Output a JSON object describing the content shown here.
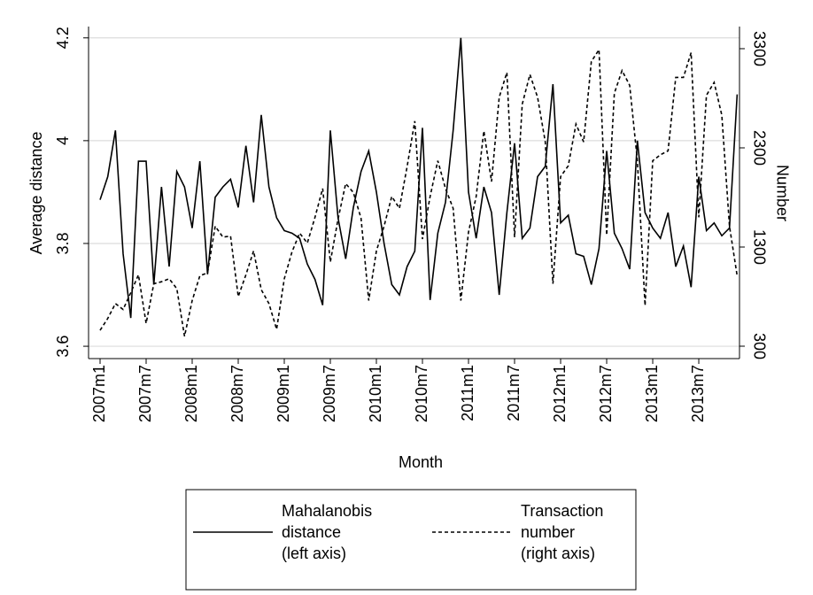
{
  "chart_data": {
    "type": "line",
    "x_label": "Month",
    "y_label": "Average distance",
    "y2_label": "Number",
    "categories": [
      "2007m1",
      null,
      null,
      null,
      null,
      null,
      "2007m7",
      null,
      null,
      null,
      null,
      null,
      "2008m1",
      null,
      null,
      null,
      null,
      null,
      "2008m7",
      null,
      null,
      null,
      null,
      null,
      "2009m1",
      null,
      null,
      null,
      null,
      null,
      "2009m7",
      null,
      null,
      null,
      null,
      null,
      "2010m1",
      null,
      null,
      null,
      null,
      null,
      "2010m7",
      null,
      null,
      null,
      null,
      null,
      "2011m1",
      null,
      null,
      null,
      null,
      null,
      "2011m7",
      null,
      null,
      null,
      null,
      null,
      "2012m1",
      null,
      null,
      null,
      null,
      null,
      "2012m7",
      null,
      null,
      null,
      null,
      null,
      "2013m1",
      null,
      null,
      null,
      null,
      null,
      "2013m7",
      null,
      null,
      null,
      null,
      null
    ],
    "series": [
      {
        "name": "Mahalanobis distance (left axis)",
        "color": "#000000",
        "dash": false,
        "axis": "y",
        "values": [
          3.885,
          3.93,
          4.02,
          3.78,
          3.655,
          3.96,
          3.96,
          3.72,
          3.91,
          3.755,
          3.94,
          3.91,
          3.83,
          3.96,
          3.74,
          3.89,
          3.91,
          3.925,
          3.87,
          3.99,
          3.88,
          4.05,
          3.91,
          3.85,
          3.825,
          3.82,
          3.81,
          3.76,
          3.73,
          3.68,
          4.02,
          3.85,
          3.77,
          3.87,
          3.94,
          3.98,
          3.9,
          3.8,
          3.72,
          3.7,
          3.755,
          3.785,
          4.025,
          3.69,
          3.82,
          3.88,
          4.02,
          4.2,
          3.9,
          3.81,
          3.91,
          3.86,
          3.7,
          3.86,
          3.995,
          3.81,
          3.83,
          3.93,
          3.95,
          4.11,
          3.84,
          3.855,
          3.78,
          3.775,
          3.72,
          3.79,
          3.98,
          3.82,
          3.79,
          3.75,
          4.0,
          3.86,
          3.83,
          3.81,
          3.86,
          3.755,
          3.795,
          3.715,
          3.93,
          3.825,
          3.84,
          3.815,
          3.83,
          4.09
        ]
      },
      {
        "name": "Transaction number (right axis)",
        "color": "#000000",
        "dash": true,
        "axis": "y2",
        "values": [
          460,
          580,
          730,
          670,
          840,
          1020,
          530,
          930,
          950,
          980,
          880,
          400,
          760,
          1010,
          1040,
          1510,
          1400,
          1410,
          800,
          1020,
          1260,
          870,
          730,
          470,
          980,
          1250,
          1440,
          1340,
          1600,
          1890,
          1150,
          1580,
          1940,
          1850,
          1590,
          760,
          1260,
          1510,
          1810,
          1690,
          2110,
          2570,
          1380,
          1810,
          2170,
          1890,
          1690,
          760,
          1450,
          1810,
          2470,
          1960,
          2810,
          3060,
          1400,
          2740,
          3040,
          2810,
          2360,
          930,
          2010,
          2120,
          2540,
          2360,
          3170,
          3290,
          1420,
          2850,
          3080,
          2930,
          2170,
          710,
          2170,
          2230,
          2270,
          3010,
          3010,
          3260,
          1600,
          2830,
          2960,
          2630,
          1510,
          1010
        ]
      }
    ],
    "ylim": [
      3.576,
      4.222
    ],
    "yticks": [
      3.6,
      3.8,
      4,
      4.2
    ],
    "y2lim": [
      175,
      3523
    ],
    "y2ticks": [
      300,
      1300,
      2300,
      3300
    ],
    "grid": true,
    "legend": "bottom"
  }
}
